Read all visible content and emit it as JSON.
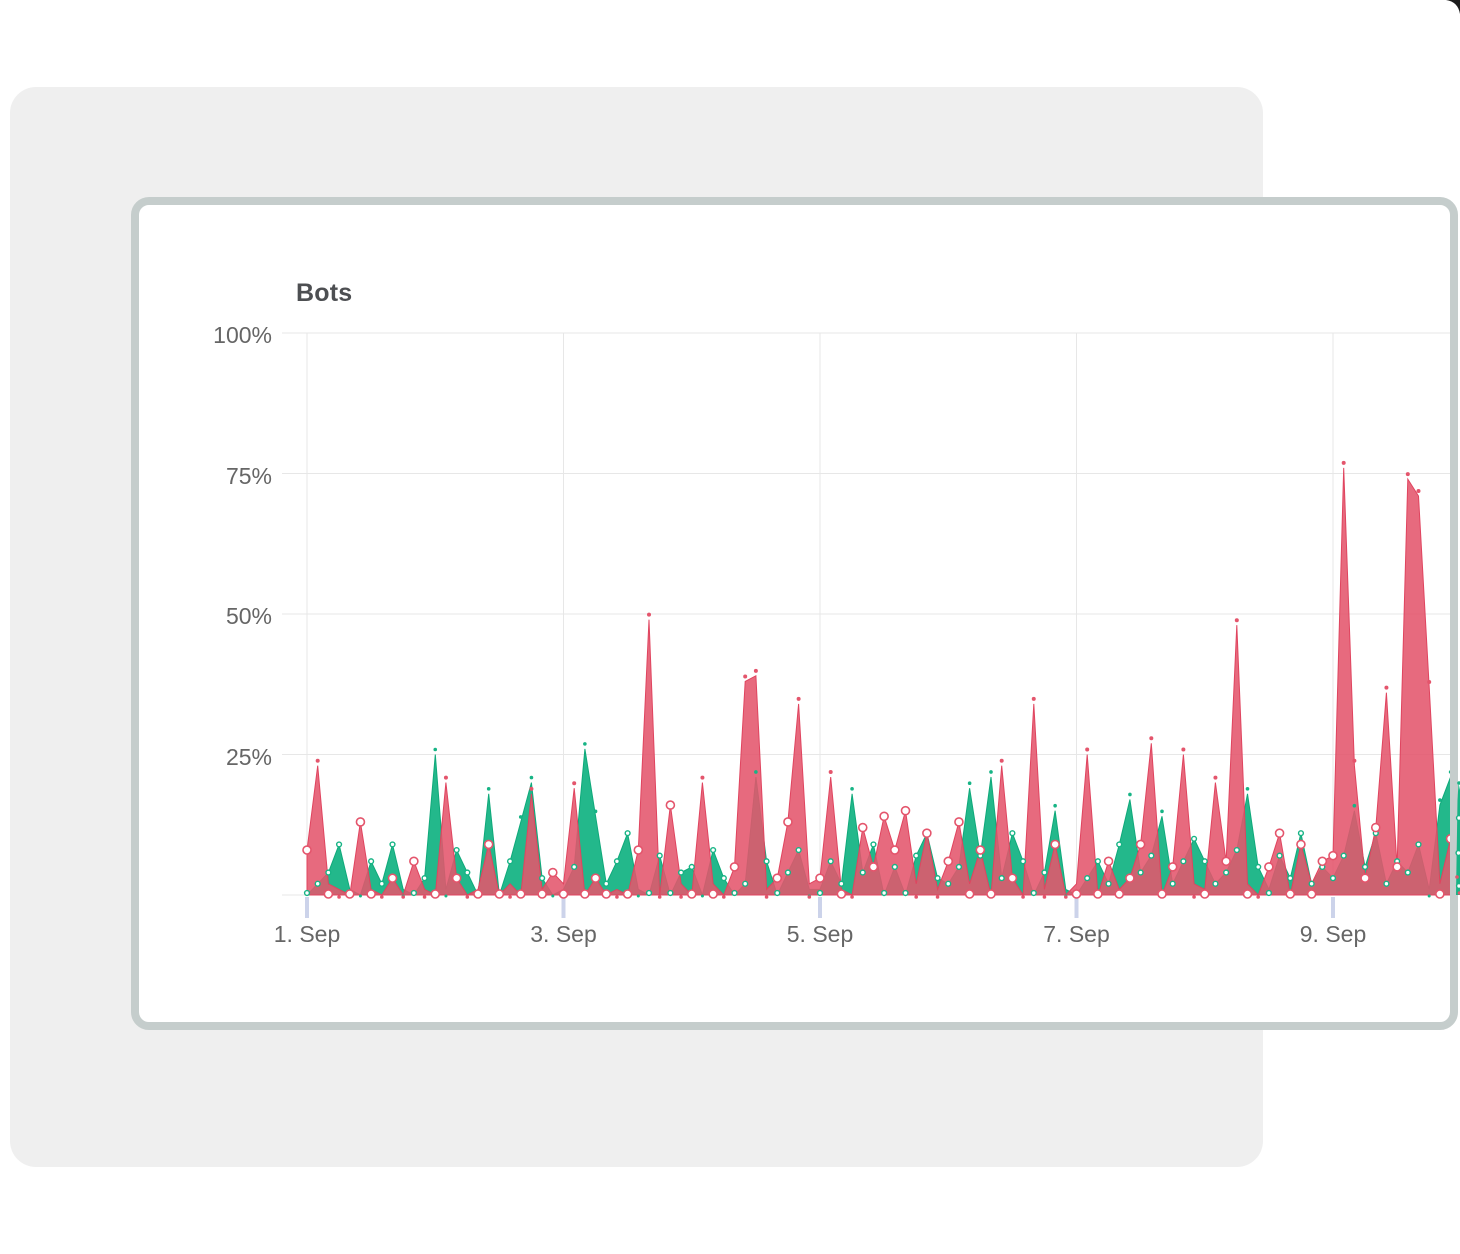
{
  "window": {
    "description": "White page with a light gray rounded panel behind a white rounded card containing a percentage time-series chart"
  },
  "colors": {
    "page_bg": "#ffffff",
    "panel_bg": "#efefef",
    "card_bg": "#ffffff",
    "card_border": "#c5cdcc",
    "grid": "#e7e7e7",
    "tick": "#ccd3ea",
    "axis_text": "#666666",
    "title_text": "#4d4f52",
    "red": "#e4556c",
    "red_stroke": "#e0445f",
    "green": "#17b485",
    "green_stroke": "#0fa97a",
    "corner_notch": "#1c1c1c"
  },
  "chart_data": {
    "type": "area",
    "title": "Bots",
    "subtitle": "",
    "xlabel": "",
    "ylabel": "",
    "x_unit": "2-hour intervals starting 1. Sep 00:00",
    "x_tick_labels": [
      "1. Sep",
      "3. Sep",
      "5. Sep",
      "7. Sep",
      "9. Sep"
    ],
    "x_tick_days": [
      0,
      2,
      4,
      6,
      8
    ],
    "y_tick_labels": [
      "100%",
      "75%",
      "50%",
      "25%"
    ],
    "y_tick_values": [
      100,
      75,
      50,
      25
    ],
    "ylim": [
      0,
      100
    ],
    "grid": true,
    "legend_position": "none",
    "marker_style": "white circles with colored rings at low values, small solid dots above spike peaks",
    "series": [
      {
        "name": "green",
        "color": "#17b485",
        "values": [
          0,
          2,
          4,
          9,
          1,
          0,
          6,
          2,
          9,
          1,
          0,
          3,
          25,
          1,
          8,
          4,
          0,
          18,
          0,
          6,
          13,
          20,
          3,
          0,
          1,
          5,
          26,
          14,
          2,
          6,
          11,
          1,
          0,
          7,
          0,
          4,
          5,
          0,
          8,
          3,
          0,
          2,
          21,
          6,
          0,
          4,
          8,
          1,
          1,
          6,
          2,
          18,
          4,
          9,
          0,
          5,
          0,
          7,
          11,
          3,
          2,
          5,
          19,
          7,
          21,
          3,
          11,
          6,
          0,
          4,
          15,
          1,
          0,
          3,
          6,
          2,
          9,
          17,
          4,
          7,
          14,
          2,
          6,
          10,
          6,
          2,
          4,
          8,
          18,
          5,
          1,
          7,
          3,
          11,
          2,
          5,
          3,
          7,
          15,
          5,
          11,
          2,
          6,
          4,
          9,
          1,
          16,
          21
        ]
      },
      {
        "name": "red",
        "color": "#e4556c",
        "values": [
          8,
          23,
          2,
          1,
          0,
          13,
          1,
          0,
          3,
          0,
          6,
          1,
          0,
          20,
          3,
          0,
          1,
          9,
          0,
          2,
          0,
          18,
          1,
          4,
          2,
          19,
          0,
          3,
          0,
          1,
          0,
          8,
          49,
          0,
          16,
          2,
          0,
          20,
          2,
          0,
          5,
          38,
          39,
          1,
          3,
          13,
          34,
          2,
          3,
          21,
          1,
          0,
          12,
          5,
          14,
          8,
          15,
          2,
          11,
          1,
          6,
          13,
          2,
          8,
          0,
          23,
          3,
          0,
          34,
          1,
          9,
          0,
          2,
          25,
          0,
          6,
          1,
          3,
          9,
          27,
          0,
          5,
          25,
          2,
          1,
          20,
          6,
          48,
          2,
          0,
          5,
          11,
          0,
          9,
          2,
          6,
          7,
          76,
          23,
          3,
          12,
          36,
          5,
          74,
          71,
          37,
          2,
          10
        ]
      }
    ]
  }
}
